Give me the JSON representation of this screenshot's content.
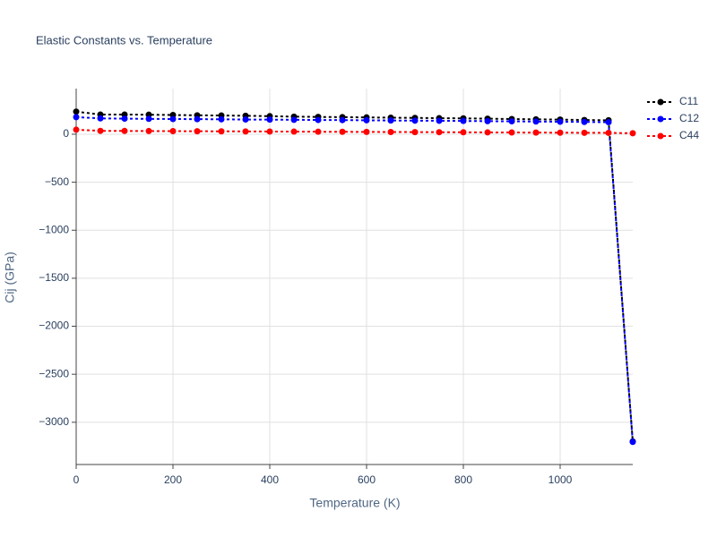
{
  "chart_data": {
    "type": "line",
    "title": "Elastic Constants vs. Temperature",
    "x_label": "Temperature (K)",
    "y_label": "Cij (GPa)",
    "x": [
      0,
      50,
      100,
      150,
      200,
      250,
      300,
      350,
      400,
      450,
      500,
      550,
      600,
      650,
      700,
      750,
      800,
      850,
      900,
      950,
      1000,
      1050,
      1100,
      1150
    ],
    "series": [
      {
        "name": "C11",
        "color": "#000000",
        "values": [
          235,
          205,
          205,
          203,
          200,
          197,
          195,
          192,
          188,
          183,
          180,
          178,
          175,
          172,
          170,
          167,
          165,
          162,
          158,
          155,
          152,
          148,
          145,
          -3200
        ]
      },
      {
        "name": "C12",
        "color": "#0000ff",
        "values": [
          178,
          165,
          162,
          160,
          158,
          157,
          155,
          153,
          152,
          150,
          148,
          147,
          145,
          143,
          141,
          140,
          138,
          136,
          134,
          132,
          130,
          128,
          125,
          -3205
        ]
      },
      {
        "name": "C44",
        "color": "#ff0000",
        "values": [
          47,
          35,
          34,
          33,
          32,
          31,
          30,
          29,
          28,
          27,
          26,
          25,
          24,
          23,
          22,
          21,
          20,
          19,
          18,
          17,
          16,
          15,
          14,
          10
        ]
      }
    ],
    "xlim": [
      0,
      1150
    ],
    "xticks": [
      0,
      200,
      400,
      600,
      800,
      1000
    ],
    "ylim": [
      -3440,
      475
    ],
    "yticks": [
      0,
      {
        "value": -500,
        "label": "−500"
      },
      {
        "value": -1000,
        "label": "−1000"
      },
      {
        "value": -1500,
        "label": "−1500"
      },
      {
        "value": -2000,
        "label": "−2000"
      },
      {
        "value": -2500,
        "label": "−2500"
      },
      {
        "value": -3000,
        "label": "−3000"
      }
    ],
    "grid": true,
    "legend": "right"
  }
}
